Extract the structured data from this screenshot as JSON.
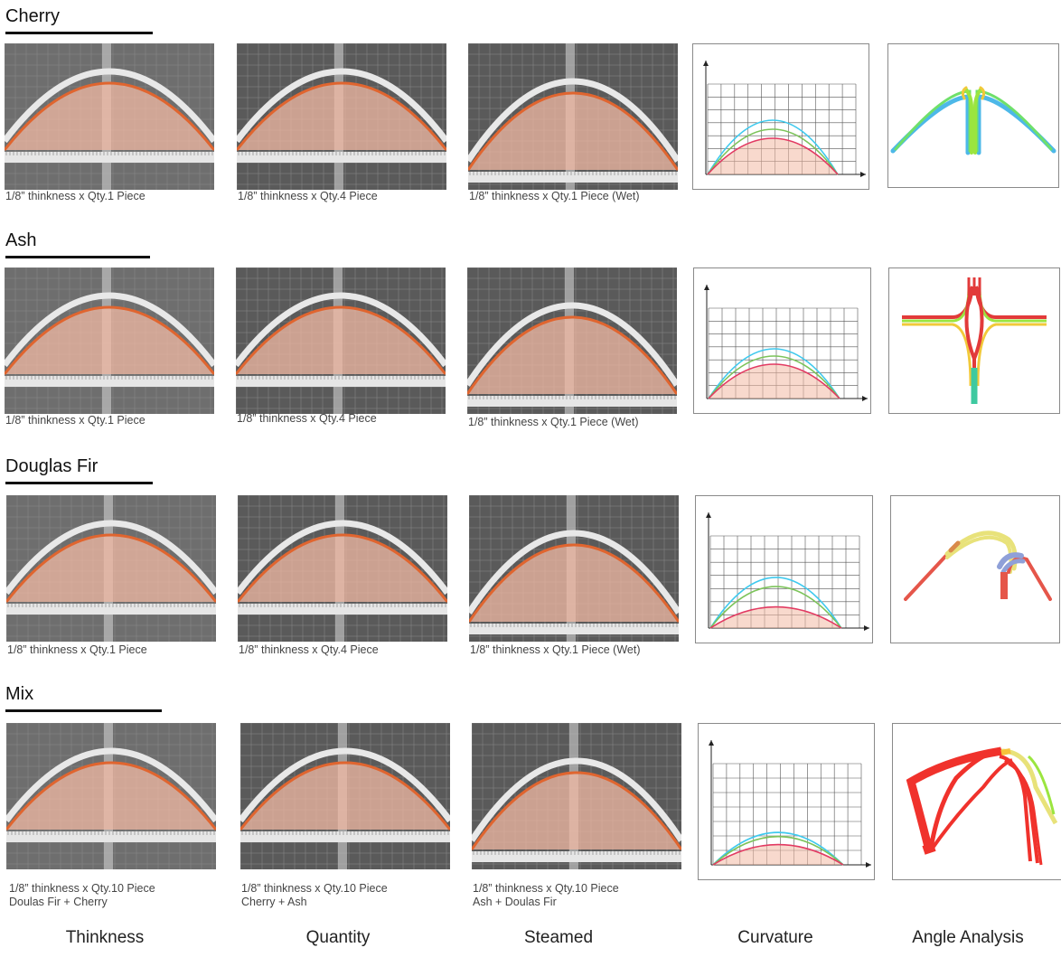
{
  "rows": [
    {
      "title": "Cherry",
      "captions": [
        [
          "1/8” thinkness x Qty.1 Piece"
        ],
        [
          "1/8” thinkness x Qty.4 Piece"
        ],
        [
          "1/8” thinkness x Qty.1 Piece (Wet)"
        ]
      ],
      "curves": [
        0.6,
        0.5,
        0.4
      ]
    },
    {
      "title": "Ash",
      "captions": [
        [
          "1/8” thinkness x Qty.1 Piece"
        ],
        [
          "1/8” thinkness x Qty.4 Piece"
        ],
        [
          "1/8” thinkness x Qty.1 Piece (Wet)"
        ]
      ],
      "curves": [
        0.55,
        0.47,
        0.38
      ]
    },
    {
      "title": "Douglas Fir",
      "captions": [
        [
          "1/8” thinkness x Qty.1 Piece"
        ],
        [
          "1/8” thinkness x Qty.4 Piece"
        ],
        [
          "1/8” thinkness x Qty.1 Piece (Wet)"
        ]
      ],
      "curves": [
        0.55,
        0.45,
        0.23
      ]
    },
    {
      "title": "Mix",
      "captions": [
        [
          "1/8” thinkness x Qty.10 Piece",
          "Doulas Fir + Cherry"
        ],
        [
          "1/8” thinkness x Qty.10 Piece",
          "Cherry + Ash"
        ],
        [
          "1/8” thinkness x Qty.10 Piece",
          "Ash + Doulas Fir"
        ]
      ],
      "curves": [
        0.32,
        0.28,
        0.2
      ]
    }
  ],
  "columns": [
    "Thinkness",
    "Quantity",
    "Steamed",
    "Curvature",
    "Angle Analysis"
  ],
  "colors": {
    "overlay": "#f2b9a4",
    "arc_stroke": "#e0652f",
    "curve_cyan": "#3ec9ee",
    "curve_green": "#7cc35a",
    "curve_red": "#e23a62",
    "grid": "#555555"
  }
}
